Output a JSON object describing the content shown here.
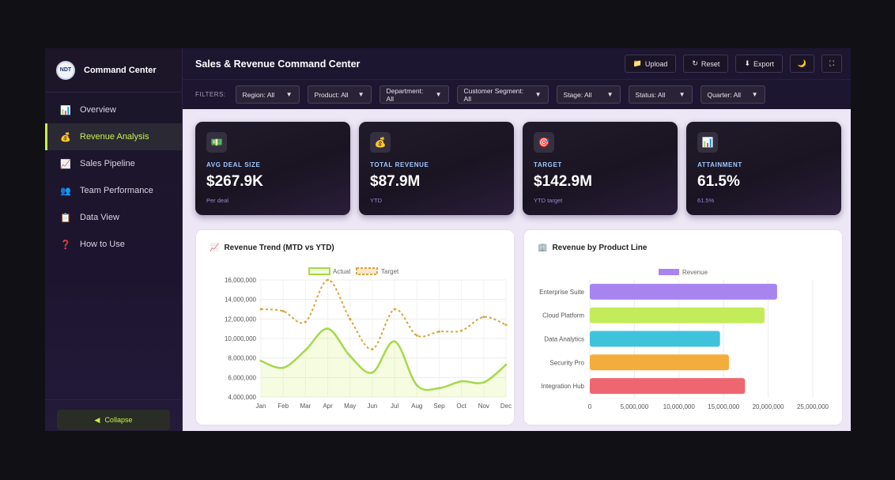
{
  "sidebar": {
    "logo_text": "NDT",
    "brand": "Command Center",
    "items": [
      {
        "label": "Overview",
        "icon": "📊"
      },
      {
        "label": "Revenue Analysis",
        "icon": "💰"
      },
      {
        "label": "Sales Pipeline",
        "icon": "📈"
      },
      {
        "label": "Team Performance",
        "icon": "👥"
      },
      {
        "label": "Data View",
        "icon": "📋"
      },
      {
        "label": "How to Use",
        "icon": "❓"
      }
    ],
    "collapse_label": "Collapse",
    "collapse_icon": "◀"
  },
  "header": {
    "title": "Sales & Revenue Command Center",
    "upload": "Upload",
    "upload_icon": "📁",
    "reset": "Reset",
    "reset_icon": "↻",
    "export": "Export",
    "export_icon": "⬇",
    "theme_icon": "🌙",
    "fullscreen_icon": "⛶"
  },
  "filters": {
    "label": "FILTERS:",
    "items": [
      {
        "label": "Region: All"
      },
      {
        "label": "Product: All"
      },
      {
        "label": "Department: All"
      },
      {
        "label": "Customer Segment: All"
      },
      {
        "label": "Stage: All"
      },
      {
        "label": "Status: All"
      },
      {
        "label": "Quarter: All"
      }
    ],
    "arrow": "▼"
  },
  "kpis": [
    {
      "icon": "💵",
      "label": "AVG DEAL SIZE",
      "value": "$267.9K",
      "sub": "Per deal"
    },
    {
      "icon": "💰",
      "label": "TOTAL REVENUE",
      "value": "$87.9M",
      "sub": "YTD"
    },
    {
      "icon": "🎯",
      "label": "TARGET",
      "value": "$142.9M",
      "sub": "YTD target"
    },
    {
      "icon": "📊",
      "label": "ATTAINMENT",
      "value": "61.5%",
      "sub": "61.5%"
    }
  ],
  "trend_card": {
    "title": "Revenue Trend (MTD vs YTD)",
    "icon": "📈"
  },
  "product_card": {
    "title": "Revenue by Product Line",
    "icon": "🏢"
  },
  "colors": {
    "accent": "#c6f04f",
    "actual_line": "#a6d84e",
    "target_line": "#d9a53a"
  },
  "chart_data": [
    {
      "type": "line",
      "x": [
        "Jan",
        "Feb",
        "Mar",
        "Apr",
        "May",
        "Jun",
        "Jul",
        "Aug",
        "Sep",
        "Oct",
        "Nov",
        "Dec"
      ],
      "series": [
        {
          "name": "Actual",
          "values": [
            7700000,
            7000000,
            8800000,
            11000000,
            8200000,
            6500000,
            9700000,
            5200000,
            4900000,
            5600000,
            5500000,
            7300000
          ]
        },
        {
          "name": "Target",
          "values": [
            13000000,
            12800000,
            11700000,
            16000000,
            12000000,
            8900000,
            13000000,
            10300000,
            10700000,
            10800000,
            12200000,
            11400000
          ]
        }
      ],
      "y_ticks": [
        "16,000,000",
        "14,000,000",
        "12,000,000",
        "10,000,000",
        "8,000,000",
        "6,000,000",
        "4,000,000"
      ],
      "ylim": [
        4000000,
        16000000
      ],
      "legend": "top"
    },
    {
      "type": "bar",
      "orientation": "horizontal",
      "categories": [
        "Enterprise Suite",
        "Cloud Platform",
        "Data Analytics",
        "Security Pro",
        "Integration Hub"
      ],
      "series": [
        {
          "name": "Revenue",
          "values": [
            21000000,
            19600000,
            14600000,
            15600000,
            17400000
          ]
        }
      ],
      "bar_colors": [
        "#a884f0",
        "#c3ec5a",
        "#3fc3dd",
        "#f4ad3c",
        "#ee6670"
      ],
      "x_ticks": [
        "0",
        "5,000,000",
        "10,000,000",
        "15,000,000",
        "20,000,000",
        "25,000,000"
      ],
      "xlim": [
        0,
        25000000
      ],
      "legend": "top"
    }
  ]
}
